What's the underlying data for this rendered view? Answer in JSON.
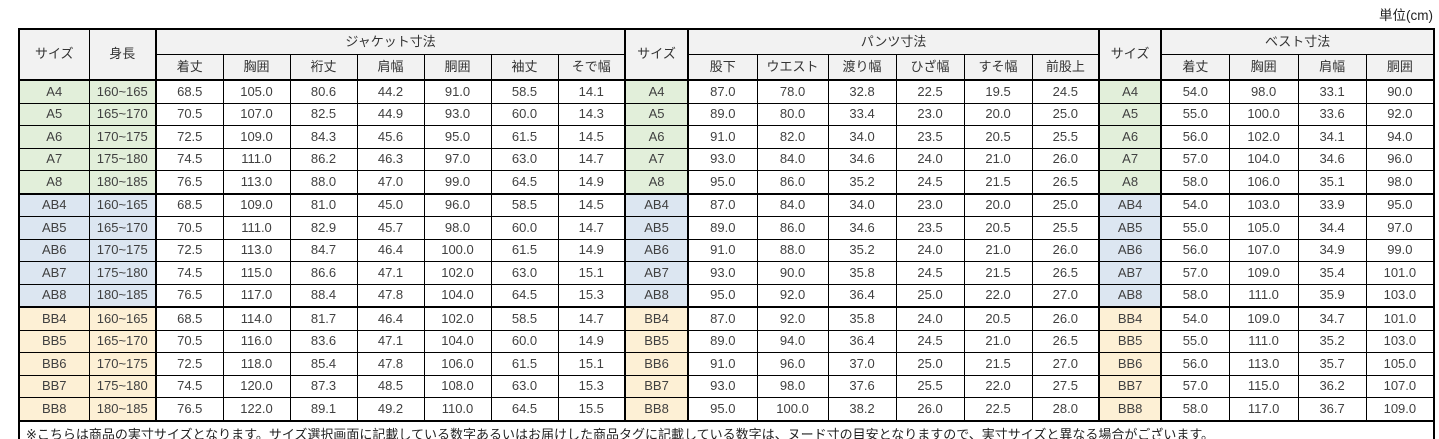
{
  "unit_label": "単位(cm)",
  "colors": {
    "header_bg": "#f2f2f2",
    "group_a": "#e2efda",
    "group_ab": "#dce6f1",
    "group_bb": "#fdf0d5",
    "border": "#000000",
    "text": "#404040"
  },
  "table": {
    "header": {
      "size": "サイズ",
      "height": "身長",
      "jacket_title": "ジャケット寸法",
      "jacket_cols": [
        "着丈",
        "胸囲",
        "裄丈",
        "肩幅",
        "胴囲",
        "袖丈",
        "そで幅"
      ],
      "pants_title": "パンツ寸法",
      "pants_cols": [
        "股下",
        "ウエスト",
        "渡り幅",
        "ひざ幅",
        "すそ幅",
        "前股上"
      ],
      "vest_title": "ベスト寸法",
      "vest_cols": [
        "着丈",
        "胸囲",
        "肩幅",
        "胴囲"
      ]
    },
    "groups": [
      {
        "name": "A",
        "color": "#e2efda",
        "rows": [
          {
            "size": "A4",
            "height": "160~165",
            "jacket": [
              "68.5",
              "105.0",
              "80.6",
              "44.2",
              "91.0",
              "58.5",
              "14.1"
            ],
            "pants": [
              "87.0",
              "78.0",
              "32.8",
              "22.5",
              "19.5",
              "24.5"
            ],
            "vest": [
              "54.0",
              "98.0",
              "33.1",
              "90.0"
            ]
          },
          {
            "size": "A5",
            "height": "165~170",
            "jacket": [
              "70.5",
              "107.0",
              "82.5",
              "44.9",
              "93.0",
              "60.0",
              "14.3"
            ],
            "pants": [
              "89.0",
              "80.0",
              "33.4",
              "23.0",
              "20.0",
              "25.0"
            ],
            "vest": [
              "55.0",
              "100.0",
              "33.6",
              "92.0"
            ]
          },
          {
            "size": "A6",
            "height": "170~175",
            "jacket": [
              "72.5",
              "109.0",
              "84.3",
              "45.6",
              "95.0",
              "61.5",
              "14.5"
            ],
            "pants": [
              "91.0",
              "82.0",
              "34.0",
              "23.5",
              "20.5",
              "25.5"
            ],
            "vest": [
              "56.0",
              "102.0",
              "34.1",
              "94.0"
            ]
          },
          {
            "size": "A7",
            "height": "175~180",
            "jacket": [
              "74.5",
              "111.0",
              "86.2",
              "46.3",
              "97.0",
              "63.0",
              "14.7"
            ],
            "pants": [
              "93.0",
              "84.0",
              "34.6",
              "24.0",
              "21.0",
              "26.0"
            ],
            "vest": [
              "57.0",
              "104.0",
              "34.6",
              "96.0"
            ]
          },
          {
            "size": "A8",
            "height": "180~185",
            "jacket": [
              "76.5",
              "113.0",
              "88.0",
              "47.0",
              "99.0",
              "64.5",
              "14.9"
            ],
            "pants": [
              "95.0",
              "86.0",
              "35.2",
              "24.5",
              "21.5",
              "26.5"
            ],
            "vest": [
              "58.0",
              "106.0",
              "35.1",
              "98.0"
            ]
          }
        ]
      },
      {
        "name": "AB",
        "color": "#dce6f1",
        "rows": [
          {
            "size": "AB4",
            "height": "160~165",
            "jacket": [
              "68.5",
              "109.0",
              "81.0",
              "45.0",
              "96.0",
              "58.5",
              "14.5"
            ],
            "pants": [
              "87.0",
              "84.0",
              "34.0",
              "23.0",
              "20.0",
              "25.0"
            ],
            "vest": [
              "54.0",
              "103.0",
              "33.9",
              "95.0"
            ]
          },
          {
            "size": "AB5",
            "height": "165~170",
            "jacket": [
              "70.5",
              "111.0",
              "82.9",
              "45.7",
              "98.0",
              "60.0",
              "14.7"
            ],
            "pants": [
              "89.0",
              "86.0",
              "34.6",
              "23.5",
              "20.5",
              "25.5"
            ],
            "vest": [
              "55.0",
              "105.0",
              "34.4",
              "97.0"
            ]
          },
          {
            "size": "AB6",
            "height": "170~175",
            "jacket": [
              "72.5",
              "113.0",
              "84.7",
              "46.4",
              "100.0",
              "61.5",
              "14.9"
            ],
            "pants": [
              "91.0",
              "88.0",
              "35.2",
              "24.0",
              "21.0",
              "26.0"
            ],
            "vest": [
              "56.0",
              "107.0",
              "34.9",
              "99.0"
            ]
          },
          {
            "size": "AB7",
            "height": "175~180",
            "jacket": [
              "74.5",
              "115.0",
              "86.6",
              "47.1",
              "102.0",
              "63.0",
              "15.1"
            ],
            "pants": [
              "93.0",
              "90.0",
              "35.8",
              "24.5",
              "21.5",
              "26.5"
            ],
            "vest": [
              "57.0",
              "109.0",
              "35.4",
              "101.0"
            ]
          },
          {
            "size": "AB8",
            "height": "180~185",
            "jacket": [
              "76.5",
              "117.0",
              "88.4",
              "47.8",
              "104.0",
              "64.5",
              "15.3"
            ],
            "pants": [
              "95.0",
              "92.0",
              "36.4",
              "25.0",
              "22.0",
              "27.0"
            ],
            "vest": [
              "58.0",
              "111.0",
              "35.9",
              "103.0"
            ]
          }
        ]
      },
      {
        "name": "BB",
        "color": "#fdf0d5",
        "rows": [
          {
            "size": "BB4",
            "height": "160~165",
            "jacket": [
              "68.5",
              "114.0",
              "81.7",
              "46.4",
              "102.0",
              "58.5",
              "14.7"
            ],
            "pants": [
              "87.0",
              "92.0",
              "35.8",
              "24.0",
              "20.5",
              "26.0"
            ],
            "vest": [
              "54.0",
              "109.0",
              "34.7",
              "101.0"
            ]
          },
          {
            "size": "BB5",
            "height": "165~170",
            "jacket": [
              "70.5",
              "116.0",
              "83.6",
              "47.1",
              "104.0",
              "60.0",
              "14.9"
            ],
            "pants": [
              "89.0",
              "94.0",
              "36.4",
              "24.5",
              "21.0",
              "26.5"
            ],
            "vest": [
              "55.0",
              "111.0",
              "35.2",
              "103.0"
            ]
          },
          {
            "size": "BB6",
            "height": "170~175",
            "jacket": [
              "72.5",
              "118.0",
              "85.4",
              "47.8",
              "106.0",
              "61.5",
              "15.1"
            ],
            "pants": [
              "91.0",
              "96.0",
              "37.0",
              "25.0",
              "21.5",
              "27.0"
            ],
            "vest": [
              "56.0",
              "113.0",
              "35.7",
              "105.0"
            ]
          },
          {
            "size": "BB7",
            "height": "175~180",
            "jacket": [
              "74.5",
              "120.0",
              "87.3",
              "48.5",
              "108.0",
              "63.0",
              "15.3"
            ],
            "pants": [
              "93.0",
              "98.0",
              "37.6",
              "25.5",
              "22.0",
              "27.5"
            ],
            "vest": [
              "57.0",
              "115.0",
              "36.2",
              "107.0"
            ]
          },
          {
            "size": "BB8",
            "height": "180~185",
            "jacket": [
              "76.5",
              "122.0",
              "89.1",
              "49.2",
              "110.0",
              "64.5",
              "15.5"
            ],
            "pants": [
              "95.0",
              "100.0",
              "38.2",
              "26.0",
              "22.5",
              "28.0"
            ],
            "vest": [
              "58.0",
              "117.0",
              "36.7",
              "109.0"
            ]
          }
        ]
      }
    ],
    "note": "※こちらは商品の実寸サイズとなります。サイズ選択画面に記載している数字あるいはお届けした商品タグに記載している数字は、ヌード寸の目安となりますので、実寸サイズと異なる場合がございます。"
  }
}
